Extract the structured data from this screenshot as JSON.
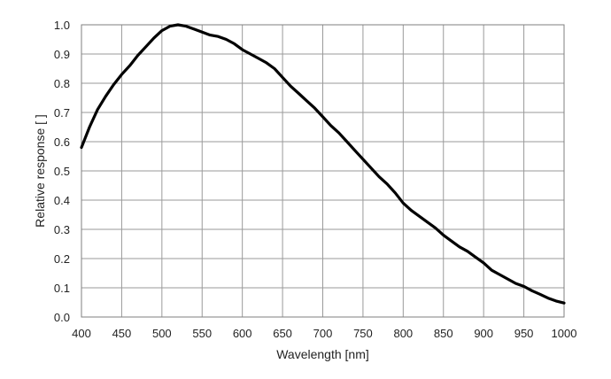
{
  "chart_data": {
    "type": "line",
    "title": "",
    "xlabel": "Wavelength [nm]",
    "ylabel": "Relative response [ ]",
    "xlim": [
      400,
      1000
    ],
    "ylim": [
      0.0,
      1.0
    ],
    "grid": true,
    "x_ticks": [
      "400",
      "450",
      "500",
      "550",
      "600",
      "650",
      "700",
      "750",
      "800",
      "850",
      "900",
      "950",
      "1000"
    ],
    "y_ticks": [
      "0.0",
      "0.1",
      "0.2",
      "0.3",
      "0.4",
      "0.5",
      "0.6",
      "0.7",
      "0.8",
      "0.9",
      "1.0"
    ],
    "series": [
      {
        "color": "#000000",
        "x": [
          400,
          410,
          420,
          430,
          440,
          450,
          460,
          470,
          480,
          490,
          500,
          510,
          520,
          530,
          540,
          550,
          560,
          570,
          580,
          590,
          600,
          610,
          620,
          630,
          640,
          650,
          660,
          670,
          680,
          690,
          700,
          710,
          720,
          730,
          740,
          750,
          760,
          770,
          780,
          790,
          800,
          810,
          820,
          830,
          840,
          850,
          860,
          870,
          880,
          890,
          900,
          910,
          920,
          930,
          940,
          950,
          960,
          970,
          980,
          990,
          1000
        ],
        "y": [
          0.58,
          0.65,
          0.71,
          0.755,
          0.795,
          0.83,
          0.86,
          0.895,
          0.925,
          0.955,
          0.98,
          0.995,
          1.0,
          0.995,
          0.985,
          0.975,
          0.965,
          0.96,
          0.95,
          0.935,
          0.915,
          0.9,
          0.885,
          0.87,
          0.85,
          0.82,
          0.79,
          0.765,
          0.74,
          0.715,
          0.685,
          0.655,
          0.63,
          0.6,
          0.57,
          0.54,
          0.51,
          0.48,
          0.455,
          0.425,
          0.39,
          0.365,
          0.345,
          0.325,
          0.305,
          0.28,
          0.26,
          0.24,
          0.225,
          0.205,
          0.185,
          0.16,
          0.145,
          0.13,
          0.115,
          0.105,
          0.09,
          0.078,
          0.065,
          0.055,
          0.048
        ]
      }
    ]
  }
}
